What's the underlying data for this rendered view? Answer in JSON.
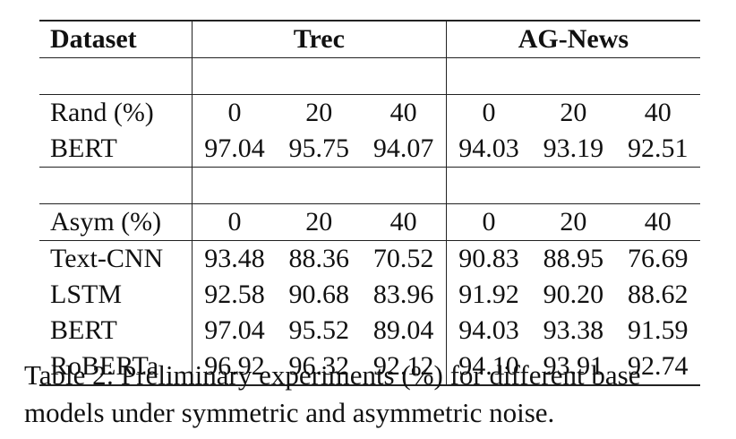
{
  "table": {
    "header": {
      "dataset": "Dataset",
      "group1": "Trec",
      "group2": "AG-News"
    },
    "rand_block": {
      "label": "Rand (%)",
      "levels": [
        "0",
        "20",
        "40",
        "0",
        "20",
        "40"
      ],
      "rows": [
        {
          "model": "BERT",
          "values": [
            "97.04",
            "95.75",
            "94.07",
            "94.03",
            "93.19",
            "92.51"
          ]
        }
      ]
    },
    "asym_block": {
      "label": "Asym (%)",
      "levels": [
        "0",
        "20",
        "40",
        "0",
        "20",
        "40"
      ],
      "rows": [
        {
          "model": "Text-CNN",
          "values": [
            "93.48",
            "88.36",
            "70.52",
            "90.83",
            "88.95",
            "76.69"
          ]
        },
        {
          "model": "LSTM",
          "values": [
            "92.58",
            "90.68",
            "83.96",
            "91.92",
            "90.20",
            "88.62"
          ]
        },
        {
          "model": "BERT",
          "values": [
            "97.04",
            "95.52",
            "89.04",
            "94.03",
            "93.38",
            "91.59"
          ]
        },
        {
          "model": "RoBERTa",
          "values": [
            "96.92",
            "96.32",
            "92.12",
            "94.10",
            "93.91",
            "92.74"
          ]
        }
      ]
    }
  },
  "caption": "Table 2: Preliminary experiments (%) for different base models under symmetric and asymmetric noise."
}
